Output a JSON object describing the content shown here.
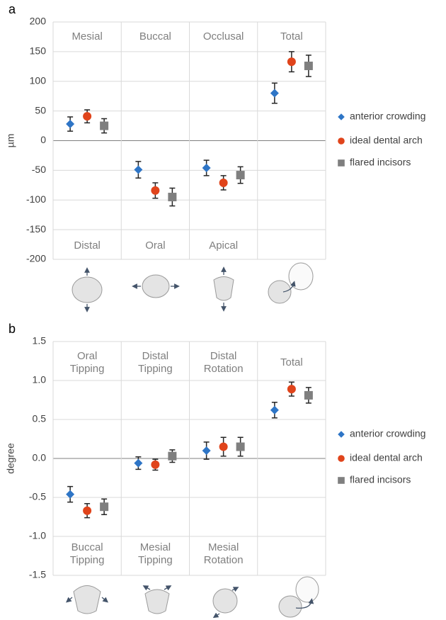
{
  "chart_data": [
    {
      "type": "errorbar",
      "panel_label": "a",
      "ylabel": "µm",
      "categories": [
        "Mesial",
        "Buccal",
        "Occlusal",
        "Total"
      ],
      "bottom_labels": [
        "Distal",
        "Oral",
        "Apical",
        null
      ],
      "ylim": [
        -200,
        200
      ],
      "yticks": [
        -200,
        -150,
        -100,
        -50,
        0,
        50,
        100,
        150,
        200
      ],
      "grid": true,
      "series": [
        {
          "name": "anterior crowding",
          "color": "#2e75c6",
          "marker": "diamond",
          "values": [
            28,
            -49,
            -46,
            80
          ],
          "errors": [
            12,
            14,
            13,
            17
          ]
        },
        {
          "name": "ideal dental arch",
          "color": "#e0441b",
          "marker": "circle",
          "values": [
            41,
            -84,
            -71,
            133
          ],
          "errors": [
            11,
            13,
            12,
            17
          ]
        },
        {
          "name": "flared incisors",
          "color": "#7f7f7f",
          "marker": "square",
          "values": [
            25,
            -95,
            -58,
            126
          ],
          "errors": [
            12,
            15,
            14,
            18
          ]
        }
      ]
    },
    {
      "type": "errorbar",
      "panel_label": "b",
      "ylabel": "degree",
      "categories": [
        "Oral Tipping",
        "Distal Tipping",
        "Distal Rotation",
        "Total"
      ],
      "bottom_labels": [
        "Buccal Tipping",
        "Mesial Tipping",
        "Mesial Rotation",
        null
      ],
      "ylim": [
        -1.5,
        1.5
      ],
      "yticks": [
        -1.5,
        {
          "value": -1,
          "label": "-1.0"
        },
        -0.5,
        {
          "value": 0,
          "label": "0.0"
        },
        0.5,
        {
          "value": 1,
          "label": "1.0"
        },
        1.5
      ],
      "grid": true,
      "series": [
        {
          "name": "anterior crowding",
          "color": "#2e75c6",
          "marker": "diamond",
          "values": [
            -0.46,
            -0.06,
            0.1,
            0.62
          ],
          "errors": [
            0.1,
            0.08,
            0.11,
            0.1
          ]
        },
        {
          "name": "ideal dental arch",
          "color": "#e0441b",
          "marker": "circle",
          "values": [
            -0.67,
            -0.08,
            0.15,
            0.89
          ],
          "errors": [
            0.09,
            0.07,
            0.12,
            0.09
          ]
        },
        {
          "name": "flared incisors",
          "color": "#7f7f7f",
          "marker": "square",
          "values": [
            -0.62,
            0.03,
            0.15,
            0.81
          ],
          "errors": [
            0.1,
            0.08,
            0.12,
            0.1
          ]
        }
      ]
    }
  ]
}
